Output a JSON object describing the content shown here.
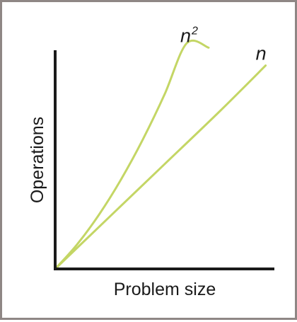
{
  "chart_data": {
    "type": "line",
    "title": "",
    "xlabel": "Problem size",
    "ylabel": "Operations",
    "grid": false,
    "ticks": false,
    "legend": "none",
    "xlim": [
      0,
      1
    ],
    "ylim": [
      0,
      1
    ],
    "series": [
      {
        "name": "n",
        "label_base": "n",
        "label_sup": "",
        "color": "#c4d665",
        "x": [
          0,
          0.25,
          0.5,
          0.75,
          0.96
        ],
        "y": [
          0,
          0.24,
          0.48,
          0.72,
          0.93
        ]
      },
      {
        "name": "n2",
        "label_base": "n",
        "label_sup": "2",
        "color": "#c4d665",
        "x": [
          0,
          0.1,
          0.2,
          0.3,
          0.4,
          0.5,
          0.6,
          0.7
        ],
        "y": [
          0,
          0.112,
          0.248,
          0.408,
          0.592,
          0.8,
          1.032,
          1.012
        ]
      }
    ]
  }
}
